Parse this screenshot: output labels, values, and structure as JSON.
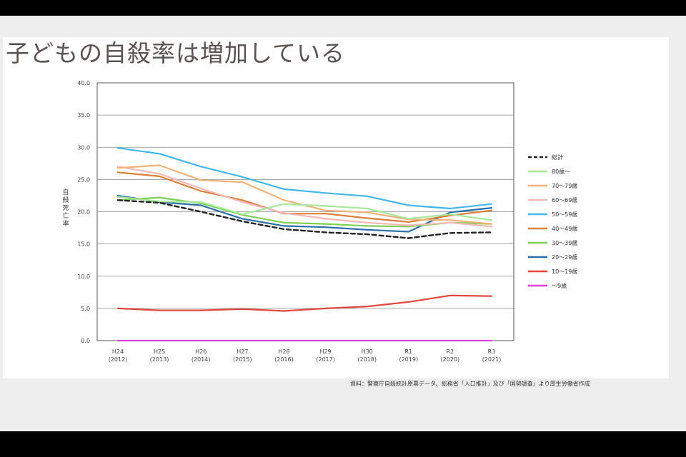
{
  "slide": {
    "title": "子どもの自殺率は増加している"
  },
  "chart_data": {
    "type": "line",
    "title": "子どもの自殺率は増加している",
    "ylabel": "自殺死亡率",
    "xlabel": "",
    "ylim": [
      0,
      40
    ],
    "yticks": [
      "0.0",
      "5.0",
      "10.0",
      "15.0",
      "20.0",
      "25.0",
      "30.0",
      "35.0",
      "40.0"
    ],
    "categories": [
      [
        "H24",
        "(2012)"
      ],
      [
        "H25",
        "(2013)"
      ],
      [
        "H26",
        "(2014)"
      ],
      [
        "H27",
        "(2015)"
      ],
      [
        "H28",
        "(2016)"
      ],
      [
        "H29",
        "(2017)"
      ],
      [
        "H30",
        "(2018)"
      ],
      [
        "R1",
        "(2019)"
      ],
      [
        "R2",
        "(2020)"
      ],
      [
        "R3",
        "(2021)"
      ]
    ],
    "legend_position": "right",
    "series": [
      {
        "name": "総計",
        "color": "#222222",
        "dashed": true,
        "values": [
          21.8,
          21.4,
          20.0,
          18.5,
          17.3,
          16.8,
          16.5,
          15.9,
          16.7,
          16.8
        ]
      },
      {
        "name": "80歳～",
        "color": "#a8e89a",
        "values": [
          22.3,
          21.6,
          21.5,
          19.6,
          21.2,
          20.9,
          20.5,
          18.9,
          19.6,
          18.7
        ]
      },
      {
        "name": "70～79歳",
        "color": "#f2b27a",
        "values": [
          26.8,
          27.2,
          24.9,
          24.6,
          21.8,
          20.2,
          19.9,
          18.8,
          18.7,
          18.1
        ]
      },
      {
        "name": "60～69歳",
        "color": "#f4b8b8",
        "values": [
          27.0,
          25.9,
          23.6,
          21.5,
          19.8,
          18.9,
          18.3,
          17.9,
          18.3,
          17.7
        ]
      },
      {
        "name": "50～59歳",
        "color": "#44b6ea",
        "values": [
          29.9,
          29.0,
          27.0,
          25.4,
          23.5,
          22.9,
          22.4,
          21.0,
          20.5,
          21.2
        ]
      },
      {
        "name": "40～49歳",
        "color": "#d9803a",
        "values": [
          26.1,
          25.5,
          23.2,
          21.8,
          19.7,
          19.7,
          19.0,
          18.4,
          19.4,
          20.2
        ]
      },
      {
        "name": "30～39歳",
        "color": "#7fcf54",
        "values": [
          21.8,
          22.2,
          21.3,
          19.5,
          18.3,
          18.1,
          17.8,
          17.7,
          18.3,
          18.1
        ]
      },
      {
        "name": "20～29歳",
        "color": "#2b6fa8",
        "values": [
          22.5,
          21.5,
          21.0,
          18.9,
          17.8,
          17.6,
          17.2,
          16.9,
          19.9,
          20.6
        ]
      },
      {
        "name": "10～19歳",
        "color": "#e0463c",
        "values": [
          5.0,
          4.7,
          4.7,
          4.9,
          4.6,
          5.0,
          5.3,
          6.0,
          7.0,
          6.9
        ]
      },
      {
        "name": "～9歳",
        "color": "#e040e0",
        "values": [
          0.0,
          0.0,
          0.0,
          0.0,
          0.0,
          0.0,
          0.0,
          0.0,
          0.0,
          0.0
        ]
      }
    ],
    "source": "資料：警察庁自殺統計原票データ、総務省「人口推計」及び「国勢調査」より厚生労働省作成"
  }
}
